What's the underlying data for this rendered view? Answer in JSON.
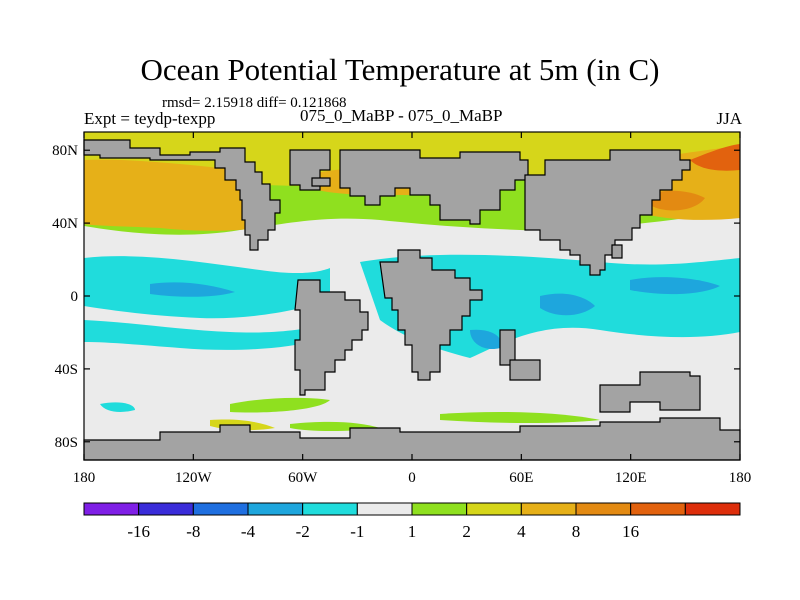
{
  "chart_data": {
    "type": "heatmap",
    "title": "Ocean Potential Temperature at 5m (in C)",
    "stats": "rmsd= 2.15918 diff= 0.121868",
    "experiment_label": "Expt = teydp-texpp",
    "experiment_name": "075_0_MaBP - 075_0_MaBP",
    "season": "JJA",
    "x_axis": {
      "range": [
        -180,
        180
      ],
      "ticks": [
        {
          "value": -180,
          "label": "180"
        },
        {
          "value": -120,
          "label": "120W"
        },
        {
          "value": -60,
          "label": "60W"
        },
        {
          "value": 0,
          "label": "0"
        },
        {
          "value": 60,
          "label": "60E"
        },
        {
          "value": 120,
          "label": "120E"
        },
        {
          "value": 180,
          "label": "180"
        }
      ]
    },
    "y_axis": {
      "range": [
        -90,
        90
      ],
      "ticks": [
        {
          "value": 80,
          "label": "80N"
        },
        {
          "value": 40,
          "label": "40N"
        },
        {
          "value": 0,
          "label": "0"
        },
        {
          "value": -40,
          "label": "40S"
        },
        {
          "value": -80,
          "label": "80S"
        }
      ]
    },
    "colorbar": {
      "colors": [
        "#7f1fe6",
        "#3a2cd9",
        "#1f6fe0",
        "#1ea6dd",
        "#20dcdc",
        "#ebebeb",
        "#8fe01f",
        "#d6d61a",
        "#e6b018",
        "#e38a12",
        "#e2620e",
        "#dd2e0b"
      ],
      "labels": [
        "-16",
        "-8",
        "-4",
        "-2",
        "-1",
        "1",
        "2",
        "4",
        "8",
        "16"
      ]
    },
    "land_color": "#a3a3a3",
    "field_regions": [
      {
        "level": "1 to 2",
        "lon": [
          -180,
          -110
        ],
        "lat": [
          30,
          42
        ]
      },
      {
        "level": "4 to 8",
        "lon": [
          -180,
          -125
        ],
        "lat": [
          40,
          65
        ]
      },
      {
        "level": "2 to 4",
        "lon": [
          -180,
          180
        ],
        "lat": [
          65,
          82
        ]
      },
      {
        "level": "4 to 8",
        "lon": [
          -55,
          15
        ],
        "lat": [
          62,
          76
        ]
      },
      {
        "level": "4 to 8",
        "lon": [
          128,
          180
        ],
        "lat": [
          40,
          66
        ]
      },
      {
        "level": "8 to 16",
        "lon": [
          160,
          180
        ],
        "lat": [
          62,
          72
        ]
      },
      {
        "level": "-2 to -1",
        "lon": [
          -180,
          -90
        ],
        "lat": [
          -10,
          14
        ]
      },
      {
        "level": "-4 to -2",
        "lon": [
          -150,
          -110
        ],
        "lat": [
          -8,
          3
        ]
      },
      {
        "level": "-2 to -1",
        "lon": [
          -60,
          140
        ],
        "lat": [
          0,
          14
        ]
      },
      {
        "level": "-2 to -1",
        "lon": [
          10,
          100
        ],
        "lat": [
          -25,
          0
        ]
      },
      {
        "level": "-4 to -2",
        "lon": [
          60,
          95
        ],
        "lat": [
          -18,
          -5
        ]
      },
      {
        "level": "1 to 2",
        "lon": [
          -95,
          -50
        ],
        "lat": [
          -62,
          -55
        ]
      }
    ]
  }
}
